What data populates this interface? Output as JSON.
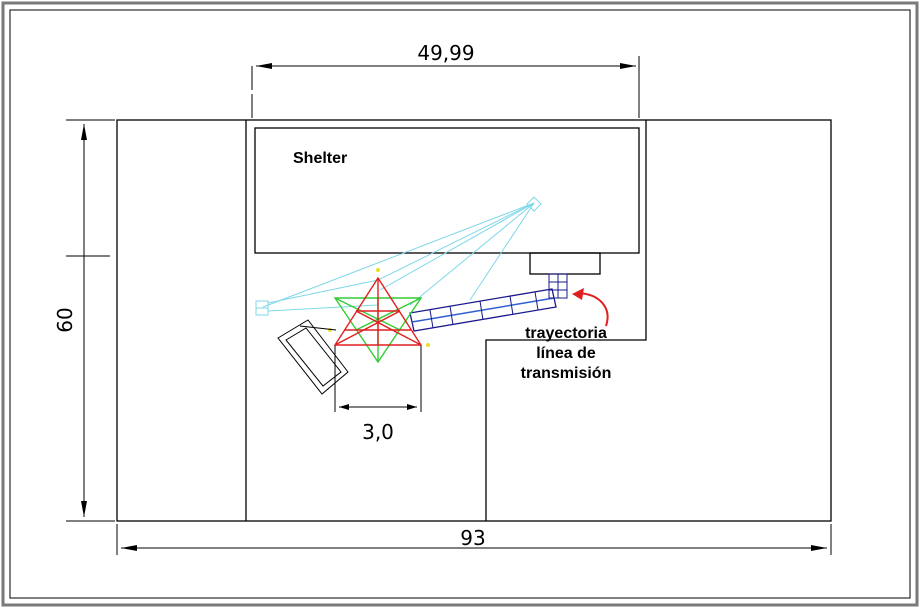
{
  "dimensions": {
    "top": "49,99",
    "left": "60",
    "bottom": "93",
    "antenna_base": "3,0"
  },
  "labels": {
    "shelter": "Shelter",
    "path_line1": "trayectoria",
    "path_line2": "línea de",
    "path_line3": "transmisión"
  },
  "colors": {
    "outline": "#000000",
    "frame": "#7a7a7a",
    "cable_tray": "#1a1a8c",
    "cable_path": "#2f5fd0",
    "guy_wires": "#7fd8e8",
    "tower_red": "#e02020",
    "tower_green": "#33cc33",
    "tower_markers": "#e8e020",
    "arrow": "#e02020"
  }
}
